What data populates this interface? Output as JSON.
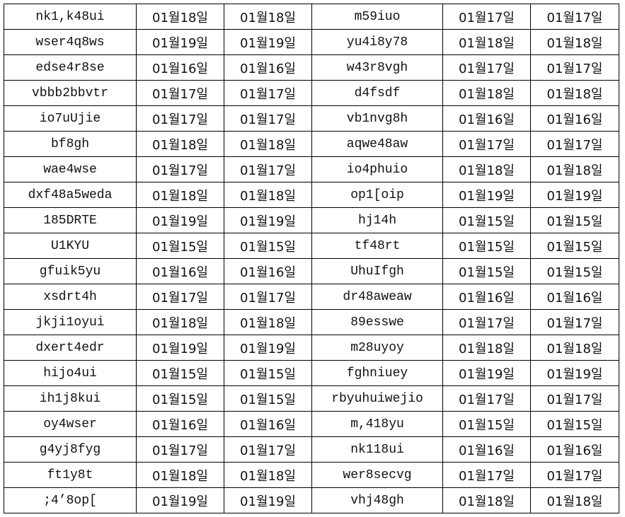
{
  "rows": [
    [
      "nk1,k48ui",
      "01월18일",
      "01월18일",
      "m59iuo",
      "01월17일",
      "01월17일"
    ],
    [
      "wser4q8ws",
      "01월19일",
      "01월19일",
      "yu4i8y78",
      "01월18일",
      "01월18일"
    ],
    [
      "edse4r8se",
      "01월16일",
      "01월16일",
      "w43r8vgh",
      "01월17일",
      "01월17일"
    ],
    [
      "vbbb2bbvtr",
      "01월17일",
      "01월17일",
      "d4fsdf",
      "01월18일",
      "01월18일"
    ],
    [
      "io7uUjie",
      "01월17일",
      "01월17일",
      "vb1nvg8h",
      "01월16일",
      "01월16일"
    ],
    [
      "bf8gh",
      "01월18일",
      "01월18일",
      "aqwe48aw",
      "01월17일",
      "01월17일"
    ],
    [
      "wae4wse",
      "01월17일",
      "01월17일",
      "io4phuio",
      "01월18일",
      "01월18일"
    ],
    [
      "dxf48a5weda",
      "01월18일",
      "01월18일",
      "op1[oip",
      "01월19일",
      "01월19일"
    ],
    [
      "185DRTE",
      "01월19일",
      "01월19일",
      "hj14h",
      "01월15일",
      "01월15일"
    ],
    [
      "U1KYU",
      "01월15일",
      "01월15일",
      "tf48rt",
      "01월15일",
      "01월15일"
    ],
    [
      "gfuik5yu",
      "01월16일",
      "01월16일",
      "UhuIfgh",
      "01월15일",
      "01월15일"
    ],
    [
      "xsdrt4h",
      "01월17일",
      "01월17일",
      "dr48aweaw",
      "01월16일",
      "01월16일"
    ],
    [
      "jkji1oyui",
      "01월18일",
      "01월18일",
      "89esswe",
      "01월17일",
      "01월17일"
    ],
    [
      "dxert4edr",
      "01월19일",
      "01월19일",
      "m28uyoy",
      "01월18일",
      "01월18일"
    ],
    [
      "hijo4ui",
      "01월15일",
      "01월15일",
      "fghniuey",
      "01월19일",
      "01월19일"
    ],
    [
      "ih1j8kui",
      "01월15일",
      "01월15일",
      "rbyuhuiwejio",
      "01월17일",
      "01월17일"
    ],
    [
      "oy4wser",
      "01월16일",
      "01월16일",
      "m,418yu",
      "01월15일",
      "01월15일"
    ],
    [
      "g4yj8fyg",
      "01월17일",
      "01월17일",
      "nk118ui",
      "01월16일",
      "01월16일"
    ],
    [
      "ft1y8t",
      "01월18일",
      "01월18일",
      "wer8secvg",
      "01월17일",
      "01월17일"
    ],
    [
      ";4’8op[",
      "01월19일",
      "01월19일",
      "vhj48gh",
      "01월18일",
      "01월18일"
    ]
  ]
}
